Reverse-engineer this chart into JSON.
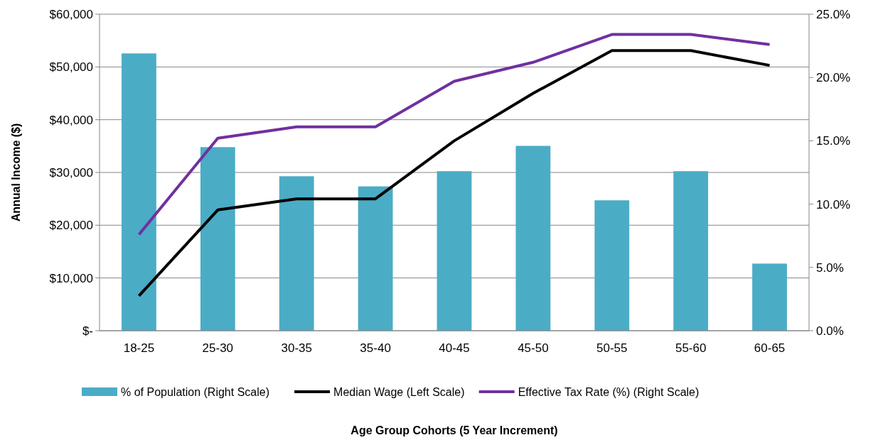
{
  "chart_data": {
    "type": "bar",
    "annotations": [
      "Age Group Cohorts (5 Year Increment)"
    ],
    "ylabel": "Annual Income ($)",
    "categories": [
      "18-25",
      "25-30",
      "30-35",
      "35-40",
      "40-45",
      "45-50",
      "50-55",
      "55-60",
      "60-65"
    ],
    "series": [
      {
        "name": "% of Population (Right Scale)",
        "axis": "y2",
        "color": "#4bacc6",
        "values": [
          21.9,
          14.5,
          12.2,
          11.4,
          12.6,
          14.6,
          10.3,
          12.6,
          5.3
        ]
      },
      {
        "name": "Median Wage (Left Scale)",
        "type": "line",
        "color": "#000000",
        "values": [
          6600,
          22900,
          25000,
          25000,
          36000,
          45000,
          53100,
          53100,
          50300
        ]
      },
      {
        "name": "Effective Tax Rate (%) (Right Scale)",
        "type": "line",
        "axis": "y2",
        "color": "#7030a0",
        "values": [
          7.6,
          15.2,
          16.1,
          16.1,
          19.7,
          21.2,
          23.4,
          23.4,
          22.6
        ]
      }
    ],
    "ylim": [
      0,
      60000
    ],
    "yticks": [
      {
        "value": 0,
        "label": "$-"
      },
      {
        "value": 10000,
        "label": "$10,000"
      },
      {
        "value": 20000,
        "label": "$20,000"
      },
      {
        "value": 30000,
        "label": "$30,000"
      },
      {
        "value": 40000,
        "label": "$40,000"
      },
      {
        "value": 50000,
        "label": "$50,000"
      },
      {
        "value": 60000,
        "label": "$60,000"
      }
    ],
    "y2lim": [
      0,
      25
    ],
    "y2ticks": [
      {
        "value": 0,
        "label": "0.0%"
      },
      {
        "value": 5,
        "label": "5.0%"
      },
      {
        "value": 10,
        "label": "10.0%"
      },
      {
        "value": 15,
        "label": "15.0%"
      },
      {
        "value": 20,
        "label": "20.0%"
      },
      {
        "value": 25,
        "label": "25.0%"
      }
    ],
    "grid": "y",
    "legend": "bottom",
    "marker": "none",
    "line_style": "solid"
  }
}
